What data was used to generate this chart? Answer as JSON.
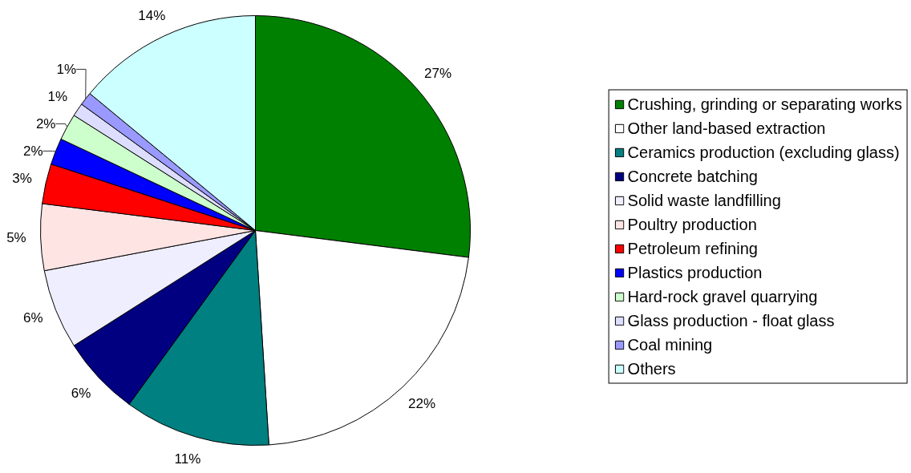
{
  "chart_data": {
    "type": "pie",
    "categories": [
      "Crushing, grinding or separating works",
      "Other land-based extraction",
      "Ceramics production (excluding glass)",
      "Concrete batching",
      "Solid waste landfilling",
      "Poultry production",
      "Petroleum refining",
      "Plastics production",
      "Hard-rock gravel quarrying",
      "Glass production - float glass",
      "Coal mining",
      "Others"
    ],
    "values": [
      27,
      22,
      11,
      6,
      6,
      5,
      3,
      2,
      2,
      1,
      1,
      14
    ],
    "colors": [
      "#008000",
      "#ffffff",
      "#008080",
      "#000080",
      "#eeeeff",
      "#ffe4e4",
      "#ff0000",
      "#0000ff",
      "#ccffcc",
      "#ddddff",
      "#9999ff",
      "#ccffff"
    ],
    "value_labels": [
      "27%",
      "22%",
      "11%",
      "6%",
      "6%",
      "5%",
      "3%",
      "2%",
      "2%",
      "1%",
      "1%",
      "14%"
    ],
    "legend": "right"
  }
}
